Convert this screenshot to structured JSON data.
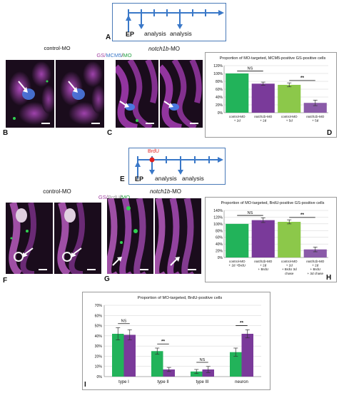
{
  "figure": {
    "panels": {
      "A": "A",
      "B": "B",
      "C": "C",
      "D": "D",
      "E": "E",
      "F": "F",
      "G": "G",
      "H": "H",
      "I": "I"
    },
    "timeline_top": {
      "ep_label": "EP",
      "analysis_1": "analysis",
      "analysis_2": "analysis"
    },
    "timeline_mid": {
      "ep_label": "EP",
      "brdu_label": "BrdU",
      "analysis_1": "analysis",
      "analysis_2": "analysis"
    },
    "row1": {
      "control_label": "control-MO",
      "stain_label_gs": "GS/",
      "stain_label_marker": "MCM5",
      "stain_label_sep": "/",
      "stain_label_mo": "MO",
      "notch_label_italic": "notch1b",
      "notch_label_suffix": "-MO"
    },
    "row2": {
      "control_label": "control-MO",
      "stain_label_gs": "GS/",
      "stain_label_marker": "BrdU",
      "stain_label_sep": "/",
      "stain_label_mo": "MO",
      "notch_label_italic": "notch1b",
      "notch_label_suffix": "-MO"
    },
    "colors": {
      "control_green": "#22b35a",
      "notch_purple": "#7a3a9a",
      "light_green": "#8cc84a",
      "light_purple": "#8a5aa8",
      "panel_border": "#4a7ab8",
      "timeline_blue": "#3a78c8",
      "brdu_red": "#e02020"
    }
  },
  "chart_data": [
    {
      "id": "D",
      "type": "bar",
      "title": "Proportion of MO-targeted, MCM5-positive GS-positive cells",
      "categories": [
        "control-MO + 2d",
        "notch1b-MO + 2d",
        "control-MO + 5d",
        "notch1b-MO + 5d"
      ],
      "values": [
        100,
        74,
        71,
        25
      ],
      "errors": [
        0,
        4,
        5,
        7
      ],
      "colors": [
        "#22b35a",
        "#7a3a9a",
        "#8cc84a",
        "#8a5aa8"
      ],
      "ylim": [
        0,
        120
      ],
      "yticks": [
        "0%",
        "20%",
        "40%",
        "60%",
        "80%",
        "100%",
        "120%"
      ],
      "annotations": [
        "NS",
        "**"
      ]
    },
    {
      "id": "H",
      "type": "bar",
      "title": "Proportion of MO-targeted, BrdU-positive GS-positive cells",
      "categories": [
        "control-MO + 2d +BrdU",
        "notch1b-MO + 2d + BrdU",
        "control-MO + 2d + BrdU 3d chase",
        "notch1b-MO + 2d + BrdU + 3d chase"
      ],
      "values": [
        100,
        111,
        106,
        24
      ],
      "errors": [
        0,
        7,
        6,
        7
      ],
      "colors": [
        "#22b35a",
        "#7a3a9a",
        "#8cc84a",
        "#8a5aa8"
      ],
      "ylim": [
        0,
        140
      ],
      "yticks": [
        "0%",
        "20%",
        "40%",
        "60%",
        "80%",
        "100%",
        "120%",
        "140%"
      ],
      "annotations": [
        "NS",
        "**"
      ]
    },
    {
      "id": "I",
      "type": "bar",
      "title": "Proportion of MO-targeted, BrdU-positive cells",
      "categories": [
        "type I",
        "type II",
        "type III",
        "neuron"
      ],
      "series": [
        {
          "values": [
            42,
            25,
            5,
            24
          ],
          "errors": [
            6,
            3,
            2,
            4
          ],
          "color": "#22b35a"
        },
        {
          "values": [
            41,
            7,
            7,
            42
          ],
          "errors": [
            5,
            2,
            3,
            4
          ],
          "color": "#7a3a9a"
        }
      ],
      "ylim": [
        0,
        70
      ],
      "yticks": [
        "0%",
        "10%",
        "20%",
        "30%",
        "40%",
        "50%",
        "60%",
        "70%"
      ],
      "annotations": [
        "NS",
        "**",
        "NS",
        "**"
      ]
    }
  ]
}
